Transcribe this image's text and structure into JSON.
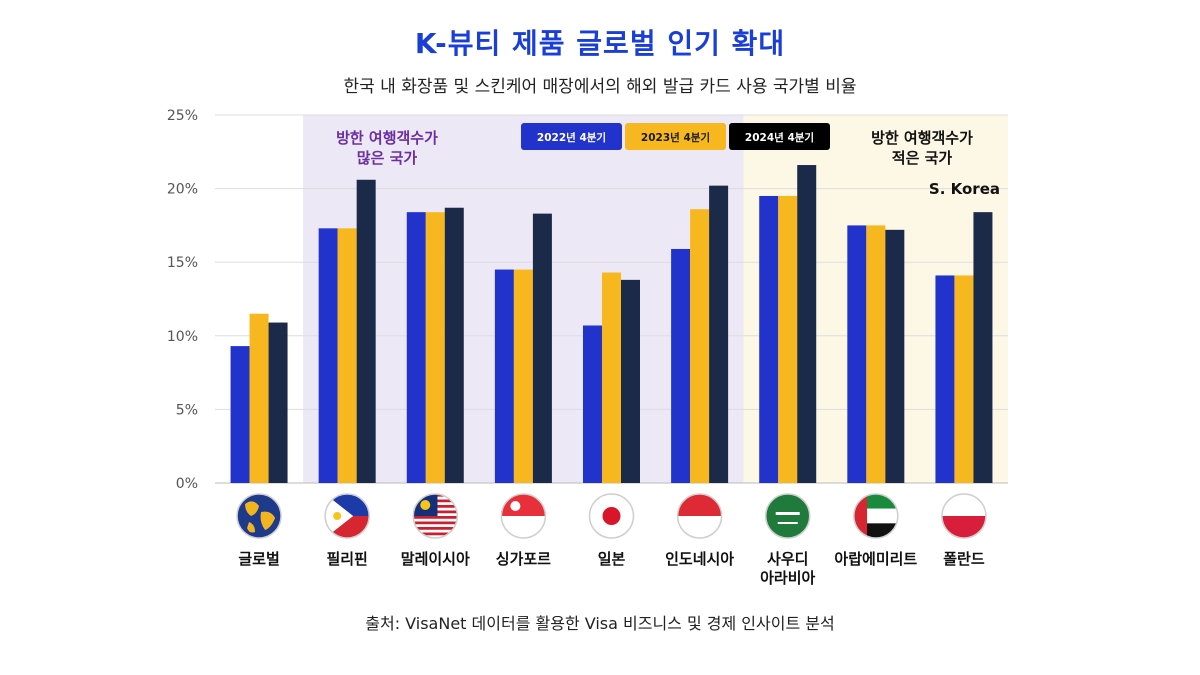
{
  "title": "K-뷰티 제품 글로벌 인기 확대",
  "subtitle": "한국 내 화장품 및 스킨케어 매장에서의 해외 발급 카드 사용 국가별 비율",
  "source": "출처: VisaNet 데이터를 활용한 Visa 비즈니스 및 경제 인사이트 분석",
  "colors": {
    "title": "#1a3fd8",
    "series_2022": "#2233cc",
    "series_2023": "#f7b81f",
    "series_2024": "#1c2a4a",
    "region_many_bg": "#ece8f5",
    "region_few_bg": "#fdf8e6",
    "region_many_text": "#6b2fa0",
    "region_few_text": "#111111",
    "grid": "#dddddd"
  },
  "chart_data": {
    "type": "bar",
    "categories": [
      "글로벌",
      "필리핀",
      "말레이시아",
      "싱가포르",
      "일본",
      "인도네시아",
      "사우디\n아라비아",
      "아랍에미리트",
      "폴란드"
    ],
    "series": [
      {
        "name": "2022년 4분기",
        "values": [
          9.3,
          17.3,
          18.4,
          14.5,
          10.7,
          15.9,
          19.5,
          17.5,
          14.1
        ]
      },
      {
        "name": "2023년 4분기",
        "values": [
          11.5,
          17.3,
          18.4,
          14.5,
          14.3,
          18.6,
          19.5,
          17.5,
          14.1
        ]
      },
      {
        "name": "2024년 4분기",
        "values": [
          10.9,
          20.6,
          18.7,
          18.3,
          13.8,
          20.2,
          21.6,
          17.2,
          18.4
        ]
      }
    ],
    "ylim": [
      0,
      25
    ],
    "yticks": [
      0,
      5,
      10,
      15,
      20,
      25
    ],
    "ytick_labels": [
      "0%",
      "5%",
      "10%",
      "15%",
      "20%",
      "25%"
    ],
    "grid": true,
    "legend_position": "top-center",
    "annotations": {
      "region_many": "방한 여행객수가\n많은 국가",
      "region_few": "방한 여행객수가\n적은 국가",
      "korea_marker": "S. Korea"
    },
    "flags": [
      "globe-icon",
      "philippines-flag-icon",
      "malaysia-flag-icon",
      "singapore-flag-icon",
      "japan-flag-icon",
      "indonesia-flag-icon",
      "saudi-arabia-flag-icon",
      "uae-flag-icon",
      "poland-flag-icon"
    ]
  }
}
